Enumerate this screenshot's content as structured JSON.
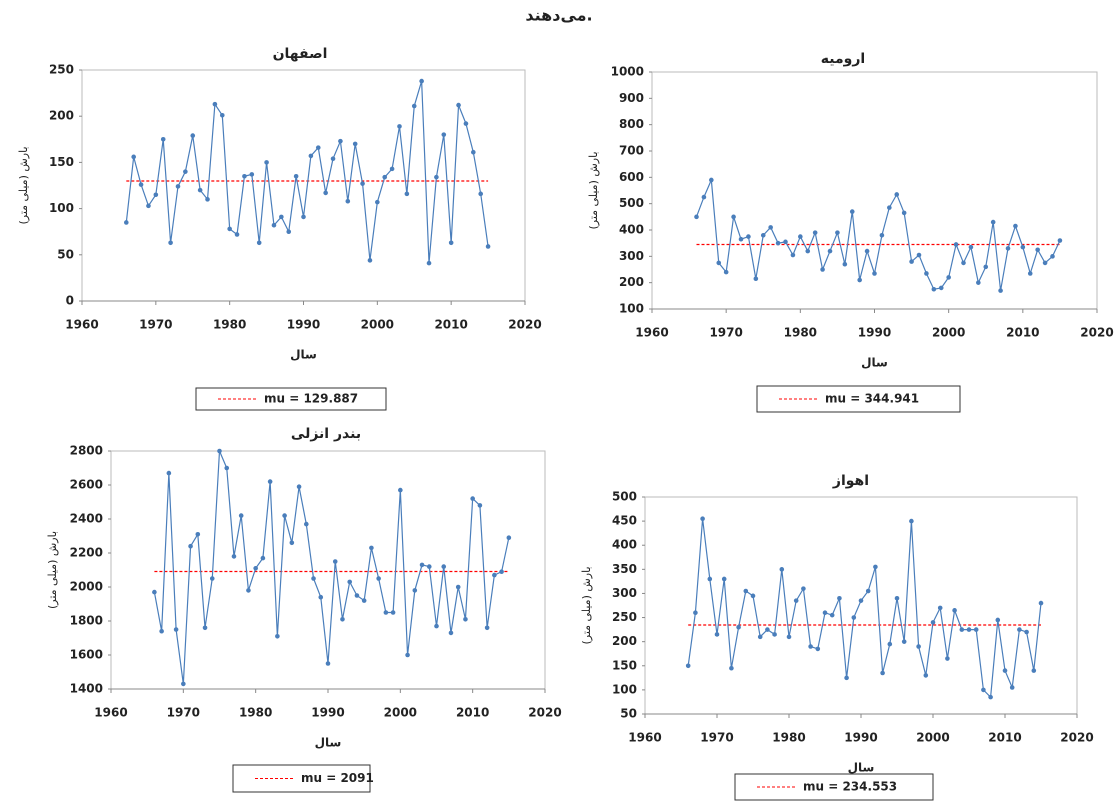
{
  "page_text": "می‌دهند.",
  "chart_data": [
    {
      "type": "line",
      "title": "اصفهان",
      "xlabel": "سال",
      "ylabel": "بارش (میلی متر)",
      "x": [
        1966,
        1967,
        1968,
        1969,
        1970,
        1971,
        1972,
        1973,
        1974,
        1975,
        1976,
        1977,
        1978,
        1979,
        1980,
        1981,
        1982,
        1983,
        1984,
        1985,
        1986,
        1987,
        1988,
        1989,
        1990,
        1991,
        1992,
        1993,
        1994,
        1995,
        1996,
        1997,
        1998,
        1999,
        2000,
        2001,
        2002,
        2003,
        2004,
        2005,
        2006,
        2007,
        2008,
        2009,
        2010,
        2011,
        2012,
        2013,
        2014,
        2015
      ],
      "series": [
        {
          "color": "#4a7ebb",
          "values": [
            85,
            156,
            126,
            103,
            115,
            175,
            63,
            124,
            140,
            179,
            120,
            110,
            213,
            201,
            78,
            72,
            135,
            137,
            63,
            150,
            82,
            91,
            75,
            135,
            91,
            157,
            166,
            117,
            154,
            173,
            108,
            170,
            127,
            44,
            107,
            134,
            143,
            189,
            116,
            211,
            238,
            41,
            134,
            180,
            63,
            212,
            192,
            161,
            116,
            59
          ]
        }
      ],
      "mean_line": {
        "name": "mu = 129.887",
        "value": 129.887,
        "color": "#ff0000"
      },
      "xlim": [
        1960,
        2020
      ],
      "xticks": [
        1960,
        1970,
        1980,
        1990,
        2000,
        2010,
        2020
      ],
      "ylim": [
        0,
        250
      ],
      "yticks": [
        0,
        50,
        100,
        150,
        200,
        250
      ]
    },
    {
      "type": "line",
      "title": "ارومیه",
      "xlabel": "سال",
      "ylabel": "بارش (میلی متر)",
      "x": [
        1966,
        1967,
        1968,
        1969,
        1970,
        1971,
        1972,
        1973,
        1974,
        1975,
        1976,
        1977,
        1978,
        1979,
        1980,
        1981,
        1982,
        1983,
        1984,
        1985,
        1986,
        1987,
        1988,
        1989,
        1990,
        1991,
        1992,
        1993,
        1994,
        1995,
        1996,
        1997,
        1998,
        1999,
        2000,
        2001,
        2002,
        2003,
        2004,
        2005,
        2006,
        2007,
        2008,
        2009,
        2010,
        2011,
        2012,
        2013,
        2014,
        2015
      ],
      "series": [
        {
          "color": "#4a7ebb",
          "values": [
            450,
            525,
            590,
            275,
            240,
            450,
            365,
            375,
            215,
            380,
            410,
            350,
            355,
            305,
            375,
            320,
            390,
            250,
            320,
            390,
            270,
            470,
            210,
            320,
            235,
            380,
            485,
            535,
            465,
            280,
            305,
            235,
            175,
            180,
            220,
            345,
            275,
            335,
            200,
            260,
            430,
            170,
            330,
            415,
            335,
            235,
            325,
            275,
            300,
            360
          ]
        }
      ],
      "mean_line": {
        "name": "mu = 344.941",
        "value": 344.941,
        "color": "#ff0000"
      },
      "xlim": [
        1960,
        2020
      ],
      "xticks": [
        1960,
        1970,
        1980,
        1990,
        2000,
        2010,
        2020
      ],
      "ylim": [
        100,
        1000
      ],
      "yticks": [
        100,
        200,
        300,
        400,
        500,
        600,
        700,
        800,
        900,
        1000
      ]
    },
    {
      "type": "line",
      "title": "بندر انزلی",
      "xlabel": "سال",
      "ylabel": "بارش (میلی متر)",
      "x": [
        1966,
        1967,
        1968,
        1969,
        1970,
        1971,
        1972,
        1973,
        1974,
        1975,
        1976,
        1977,
        1978,
        1979,
        1980,
        1981,
        1982,
        1983,
        1984,
        1985,
        1986,
        1987,
        1988,
        1989,
        1990,
        1991,
        1992,
        1993,
        1994,
        1995,
        1996,
        1997,
        1998,
        1999,
        2000,
        2001,
        2002,
        2003,
        2004,
        2005,
        2006,
        2007,
        2008,
        2009,
        2010,
        2011,
        2012,
        2013,
        2014,
        2015
      ],
      "series": [
        {
          "color": "#4a7ebb",
          "values": [
            1970,
            1740,
            2670,
            1750,
            1430,
            2240,
            2310,
            1760,
            2050,
            2800,
            2700,
            2180,
            2420,
            1980,
            2110,
            2170,
            2620,
            1710,
            2420,
            2260,
            2590,
            2370,
            2050,
            1940,
            1550,
            2150,
            1810,
            2030,
            1950,
            1920,
            2230,
            2050,
            1850,
            1850,
            2570,
            1600,
            1980,
            2130,
            2120,
            1770,
            2120,
            1730,
            2000,
            1810,
            2520,
            2480,
            1760,
            2070,
            2090,
            2290
          ]
        }
      ],
      "mean_line": {
        "name": "mu = 2091",
        "value": 2091,
        "color": "#ff0000"
      },
      "xlim": [
        1960,
        2020
      ],
      "xticks": [
        1960,
        1970,
        1980,
        1990,
        2000,
        2010,
        2020
      ],
      "ylim": [
        1400,
        2800
      ],
      "yticks": [
        1400,
        1600,
        1800,
        2000,
        2200,
        2400,
        2600,
        2800
      ]
    },
    {
      "type": "line",
      "title": "اهواز",
      "xlabel": "سال",
      "ylabel": "بارش (میلی متر)",
      "x": [
        1966,
        1967,
        1968,
        1969,
        1970,
        1971,
        1972,
        1973,
        1974,
        1975,
        1976,
        1977,
        1978,
        1979,
        1980,
        1981,
        1982,
        1983,
        1984,
        1985,
        1986,
        1987,
        1988,
        1989,
        1990,
        1991,
        1992,
        1993,
        1994,
        1995,
        1996,
        1997,
        1998,
        1999,
        2000,
        2001,
        2002,
        2003,
        2004,
        2005,
        2006,
        2007,
        2008,
        2009,
        2010,
        2011,
        2012,
        2013,
        2014,
        2015
      ],
      "series": [
        {
          "color": "#4a7ebb",
          "values": [
            150,
            260,
            455,
            330,
            215,
            330,
            145,
            230,
            305,
            295,
            210,
            225,
            215,
            350,
            210,
            285,
            310,
            190,
            185,
            260,
            255,
            290,
            125,
            250,
            285,
            305,
            355,
            135,
            195,
            290,
            200,
            450,
            190,
            130,
            240,
            270,
            165,
            265,
            225,
            225,
            225,
            100,
            85,
            245,
            140,
            105,
            225,
            220,
            140,
            280
          ]
        }
      ],
      "mean_line": {
        "name": "mu = 234.553",
        "value": 234.553,
        "color": "#ff0000"
      },
      "xlim": [
        1960,
        2020
      ],
      "xticks": [
        1960,
        1970,
        1980,
        1990,
        2000,
        2010,
        2020
      ],
      "ylim": [
        50,
        500
      ],
      "yticks": [
        50,
        100,
        150,
        200,
        250,
        300,
        350,
        400,
        450,
        500
      ]
    }
  ]
}
